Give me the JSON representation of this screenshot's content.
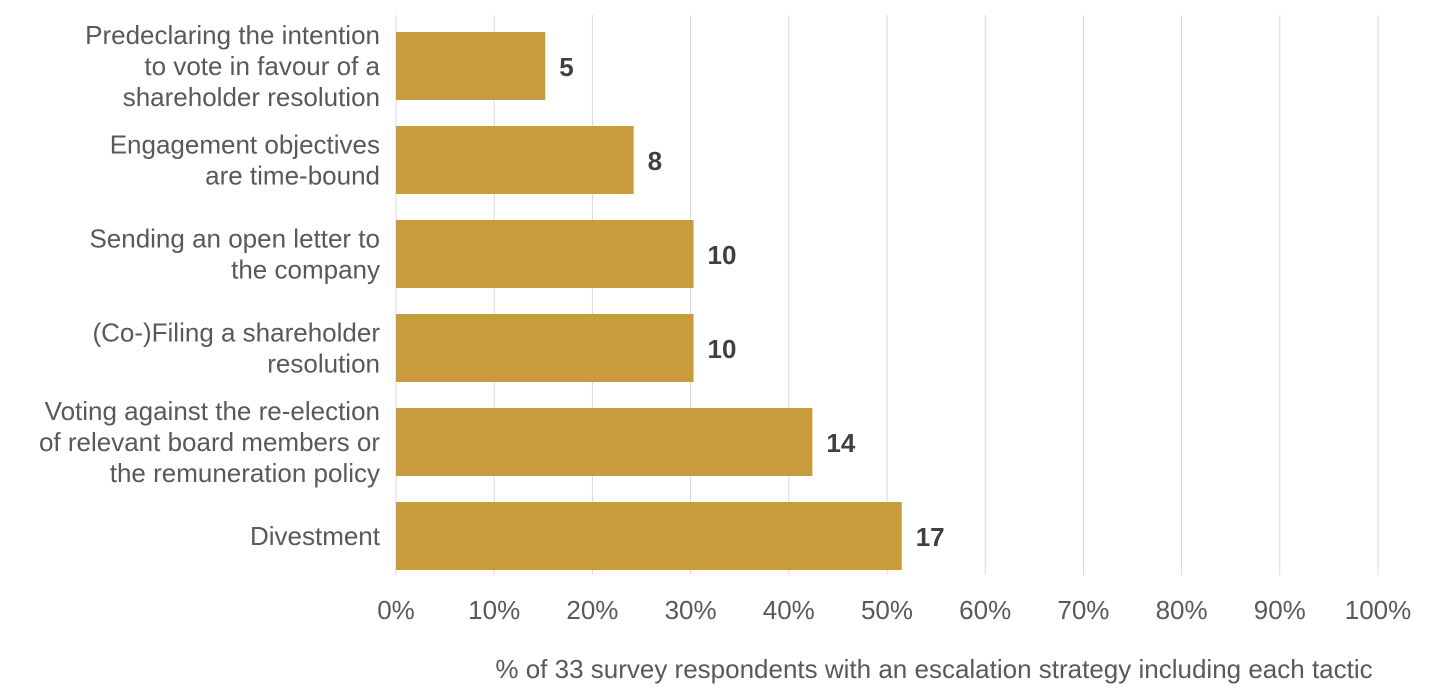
{
  "chart_data": {
    "type": "bar",
    "orientation": "horizontal",
    "categories": [
      [
        "Predeclaring the intention",
        "to vote in favour of a",
        "shareholder resolution"
      ],
      [
        "Engagement objectives",
        "are time-bound"
      ],
      [
        "Sending an open letter to",
        "the company"
      ],
      [
        "(Co-)Filing a shareholder",
        "resolution"
      ],
      [
        "Voting against the re-election",
        "of relevant board members or",
        "the remuneration policy"
      ],
      [
        "Divestment"
      ]
    ],
    "values_percent": [
      15.2,
      24.2,
      30.3,
      30.3,
      42.4,
      51.5
    ],
    "data_labels": [
      "5",
      "8",
      "10",
      "10",
      "14",
      "17"
    ],
    "xlim": [
      0,
      100
    ],
    "x_ticks": [
      "0%",
      "10%",
      "20%",
      "30%",
      "40%",
      "50%",
      "60%",
      "70%",
      "80%",
      "90%",
      "100%"
    ],
    "xlabel": "% of 33 survey respondents with an escalation strategy including each tactic",
    "grid": "vertical",
    "legend": "none",
    "colors": {
      "bar": "#C89B3C",
      "grid": "#D9D9D9",
      "axis_text": "#595959",
      "data_label": "#404040"
    }
  }
}
